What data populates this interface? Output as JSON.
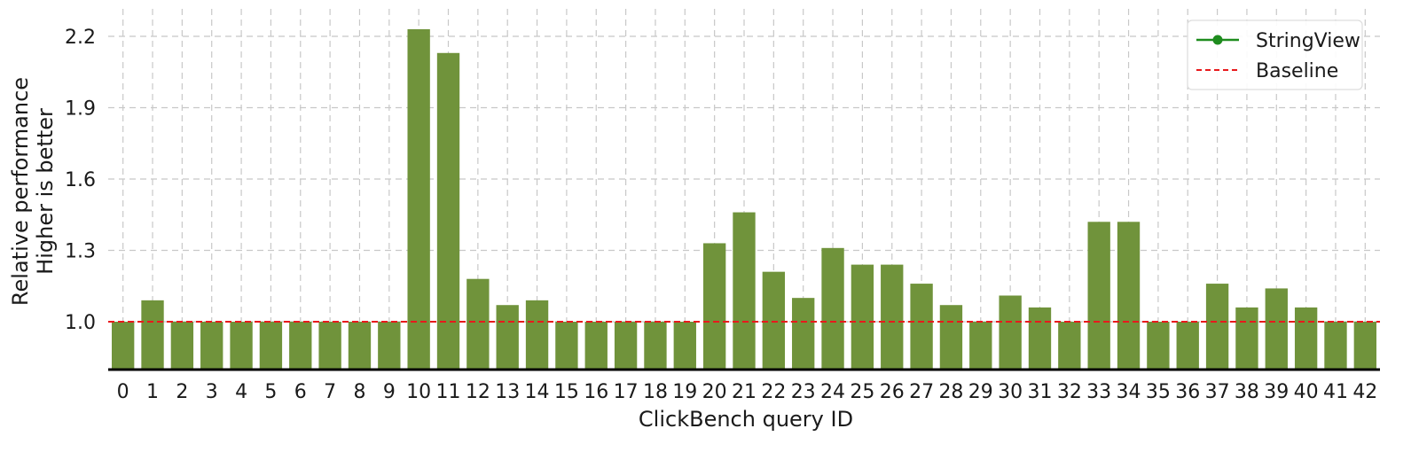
{
  "chart_data": {
    "type": "bar",
    "xlabel": "ClickBench query ID",
    "ylabel_lines": [
      "Relative performance",
      "Higher is better"
    ],
    "categories": [
      "0",
      "1",
      "2",
      "3",
      "4",
      "5",
      "6",
      "7",
      "8",
      "9",
      "10",
      "11",
      "12",
      "13",
      "14",
      "15",
      "16",
      "17",
      "18",
      "19",
      "20",
      "21",
      "22",
      "23",
      "24",
      "25",
      "26",
      "27",
      "28",
      "29",
      "30",
      "31",
      "32",
      "33",
      "34",
      "35",
      "36",
      "37",
      "38",
      "39",
      "40",
      "41",
      "42"
    ],
    "values": [
      1.0,
      1.09,
      1.0,
      1.0,
      1.0,
      1.0,
      1.0,
      1.0,
      1.0,
      1.0,
      2.23,
      2.13,
      1.18,
      1.07,
      1.09,
      1.0,
      1.0,
      1.0,
      1.0,
      1.0,
      1.33,
      1.46,
      1.21,
      1.1,
      1.31,
      1.24,
      1.24,
      1.16,
      1.07,
      1.0,
      1.11,
      1.06,
      1.0,
      1.42,
      1.42,
      1.0,
      1.0,
      1.16,
      1.06,
      1.14,
      1.06,
      1.0,
      1.0
    ],
    "ylim": [
      0.8,
      2.3
    ],
    "yticks": [
      1.0,
      1.3,
      1.6,
      1.9,
      2.2
    ],
    "ytick_labels": [
      "1.0",
      "1.3",
      "1.6",
      "1.9",
      "2.2"
    ],
    "baseline": 1.0,
    "grid": true,
    "legend": {
      "position": "top-right",
      "entries": [
        {
          "label": "StringView",
          "style": "line-marker",
          "color": "#1e8c1e"
        },
        {
          "label": "Baseline",
          "style": "dashed",
          "color": "#e8191c"
        }
      ]
    },
    "colors": {
      "bar": "#70933b",
      "baseline": "#e8191c",
      "grid": "#c8c8c8",
      "axis": "#000000"
    }
  }
}
